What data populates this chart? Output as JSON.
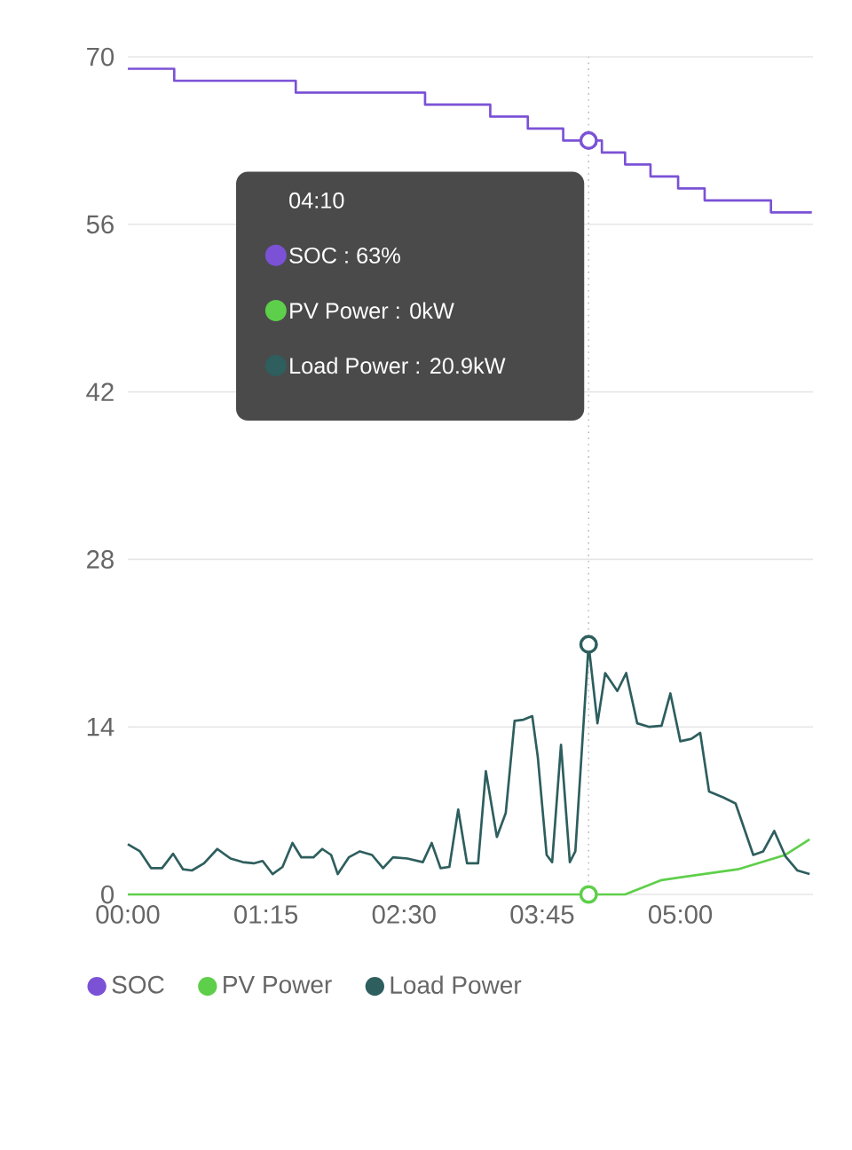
{
  "chart_data": {
    "type": "line",
    "x": [
      0,
      0.42,
      1.52,
      2.69,
      3.28,
      3.62,
      3.94,
      4.29,
      4.5,
      4.73,
      4.98,
      5.22,
      5.82,
      6.19
    ],
    "series": [
      {
        "name": "SOC",
        "type": "step",
        "color": "#7b52d6",
        "values": [
          69,
          68,
          67,
          66,
          65,
          64,
          63,
          62,
          61,
          60,
          59,
          58,
          57,
          57
        ]
      },
      {
        "name": "PV Power",
        "color": "#5ecf4a",
        "x": [
          0,
          4.5,
          4.83,
          5.52,
          5.95,
          6.17
        ],
        "values": [
          0,
          0,
          1.2,
          2.1,
          3.3,
          4.6
        ]
      },
      {
        "name": "Load Power",
        "color": "#2e5e5e",
        "x": [
          0,
          0.11,
          0.21,
          0.31,
          0.41,
          0.5,
          0.58,
          0.69,
          0.81,
          0.93,
          1.04,
          1.14,
          1.22,
          1.31,
          1.4,
          1.49,
          1.57,
          1.68,
          1.76,
          1.84,
          1.9,
          2.0,
          2.1,
          2.21,
          2.31,
          2.4,
          2.53,
          2.67,
          2.75,
          2.83,
          2.91,
          2.99,
          3.07,
          3.17,
          3.24,
          3.34,
          3.42,
          3.5,
          3.58,
          3.66,
          3.71,
          3.79,
          3.84,
          3.92,
          4.0,
          4.05,
          4.17,
          4.25,
          4.32,
          4.43,
          4.51,
          4.61,
          4.72,
          4.83,
          4.91,
          5.0,
          5.1,
          5.18,
          5.26,
          5.39,
          5.5,
          5.66,
          5.75,
          5.85,
          5.95,
          6.06,
          6.17
        ],
        "values": [
          4.2,
          3.6,
          2.2,
          2.2,
          3.4,
          2.1,
          2.0,
          2.6,
          3.8,
          3.0,
          2.7,
          2.6,
          2.8,
          1.7,
          2.3,
          4.3,
          3.1,
          3.1,
          3.8,
          3.3,
          1.7,
          3.1,
          3.6,
          3.3,
          2.2,
          3.1,
          3.0,
          2.7,
          4.3,
          2.2,
          2.3,
          7.1,
          2.6,
          2.6,
          10.3,
          4.8,
          6.8,
          14.5,
          14.6,
          14.9,
          11.5,
          3.3,
          2.7,
          12.5,
          2.7,
          3.6,
          20.9,
          14.3,
          18.5,
          17.0,
          18.5,
          14.3,
          14.0,
          14.1,
          16.8,
          12.8,
          13.0,
          13.5,
          8.6,
          8.1,
          7.6,
          3.3,
          3.6,
          5.3,
          3.2,
          2.0,
          1.7
        ]
      }
    ],
    "xlim": [
      0,
      6.2
    ],
    "ylim": [
      0,
      70
    ],
    "xticks": [
      {
        "value": 0,
        "label": "00:00"
      },
      {
        "value": 1.25,
        "label": "01:15"
      },
      {
        "value": 2.5,
        "label": "02:30"
      },
      {
        "value": 3.75,
        "label": "03:45"
      },
      {
        "value": 5,
        "label": "05:00"
      }
    ],
    "yticks": [
      0,
      14,
      28,
      42,
      56,
      70
    ],
    "ref_lines": [
      {
        "axis": "x",
        "value": 4.17,
        "color": "#bbbbbb",
        "line_style": "dotted"
      }
    ],
    "annotations": [
      "04:10",
      "SOC : 63%",
      "PV Power : 0kW",
      "Load Power : 20.9kW"
    ],
    "grid": "y",
    "legend": "bottom",
    "marker": "none",
    "line_style": "solid"
  }
}
